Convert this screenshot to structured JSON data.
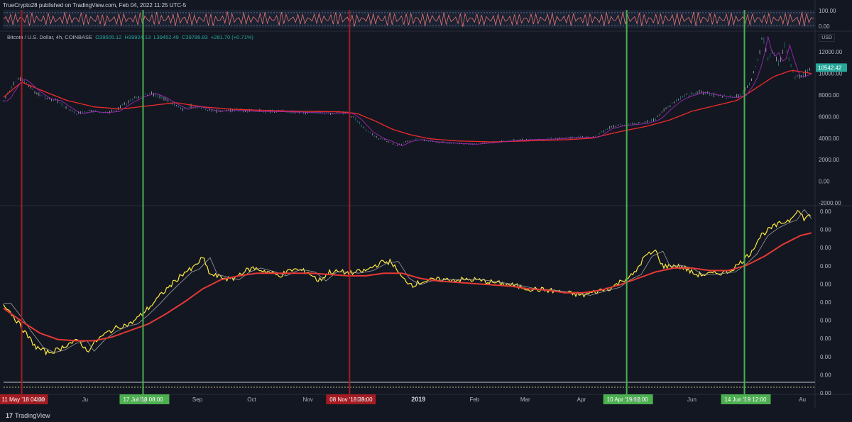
{
  "header": {
    "publisher": "TrueCrypto28",
    "text": "published on TradingView.com, Feb 04, 2022 11:25 UTC-5"
  },
  "legend": {
    "symbol": "Bitcoin / U.S. Dollar, 4h, COINBASE",
    "open": "O39505.12",
    "high": "H39924.13",
    "low": "L39452.49",
    "close": "C39786.83",
    "change": "+281.70 (+0.71%)"
  },
  "currency": "USD",
  "brand": {
    "logo": "17",
    "name": "TradingView"
  },
  "chart_data": {
    "type": "line",
    "colors": {
      "background": "#131722",
      "candles": "#26a69a",
      "ma_red": "#ef2b2b",
      "ma_purple": "#9c27b0",
      "osc_yellow": "#ffeb3b",
      "osc_red": "#e53935",
      "green_marker": "#4caf50",
      "red_marker": "#a31c22",
      "price_badge": "#26a69a"
    },
    "x_axis": {
      "ticks": [
        {
          "label": "Jun",
          "d": 20
        },
        {
          "label": "Ju",
          "d": 45
        },
        {
          "label": "Aug",
          "d": 76
        },
        {
          "label": "Sep",
          "d": 107
        },
        {
          "label": "Oct",
          "d": 137
        },
        {
          "label": "Nov",
          "d": 168
        },
        {
          "label": "Dec",
          "d": 198
        },
        {
          "label": "2019",
          "d": 229
        },
        {
          "label": "Feb",
          "d": 260
        },
        {
          "label": "Mar",
          "d": 288
        },
        {
          "label": "Apr",
          "d": 319
        },
        {
          "label": "May",
          "d": 349
        },
        {
          "label": "Jun",
          "d": 380
        },
        {
          "label": "Jul",
          "d": 410
        },
        {
          "label": "Au",
          "d": 441
        }
      ]
    },
    "markers": [
      {
        "label": "11 May '18   04:00",
        "d": 10,
        "color": "red"
      },
      {
        "label": "17 Jul '18   08:00",
        "d": 77,
        "color": "green"
      },
      {
        "label": "08 Nov '18   23:00",
        "d": 191,
        "color": "red"
      },
      {
        "label": "10 Apr '19   12:00",
        "d": 344,
        "color": "green"
      },
      {
        "label": "14 Jun '19   12:00",
        "d": 409,
        "color": "green"
      }
    ],
    "top_panel": {
      "ticks": [
        "100.00",
        "0.00"
      ],
      "ylim": [
        0,
        100
      ]
    },
    "price_panel": {
      "ticks": [
        "12000.00",
        "10000.00",
        "8000.00",
        "6000.00",
        "4000.00",
        "2000.00",
        "0.00",
        "-2000.00"
      ],
      "ylim": [
        -2000,
        13000
      ],
      "last_price": "10542.42",
      "price": [
        {
          "d": 0,
          "v": 7500
        },
        {
          "d": 4,
          "v": 8600
        },
        {
          "d": 8,
          "v": 9600
        },
        {
          "d": 11,
          "v": 9300
        },
        {
          "d": 17,
          "v": 8400
        },
        {
          "d": 23,
          "v": 7700
        },
        {
          "d": 29,
          "v": 7500
        },
        {
          "d": 35,
          "v": 6800
        },
        {
          "d": 40,
          "v": 6300
        },
        {
          "d": 47,
          "v": 6500
        },
        {
          "d": 54,
          "v": 6400
        },
        {
          "d": 61,
          "v": 6500
        },
        {
          "d": 68,
          "v": 7300
        },
        {
          "d": 75,
          "v": 7900
        },
        {
          "d": 81,
          "v": 8200
        },
        {
          "d": 87,
          "v": 7800
        },
        {
          "d": 93,
          "v": 7200
        },
        {
          "d": 99,
          "v": 6700
        },
        {
          "d": 104,
          "v": 7000
        },
        {
          "d": 110,
          "v": 6800
        },
        {
          "d": 116,
          "v": 6500
        },
        {
          "d": 123,
          "v": 6600
        },
        {
          "d": 130,
          "v": 6600
        },
        {
          "d": 137,
          "v": 6500
        },
        {
          "d": 148,
          "v": 6500
        },
        {
          "d": 160,
          "v": 6450
        },
        {
          "d": 170,
          "v": 6400
        },
        {
          "d": 180,
          "v": 6350
        },
        {
          "d": 190,
          "v": 6350
        },
        {
          "d": 195,
          "v": 5700
        },
        {
          "d": 201,
          "v": 4600
        },
        {
          "d": 207,
          "v": 4000
        },
        {
          "d": 212,
          "v": 3700
        },
        {
          "d": 217,
          "v": 3300
        },
        {
          "d": 222,
          "v": 3700
        },
        {
          "d": 228,
          "v": 3900
        },
        {
          "d": 238,
          "v": 3650
        },
        {
          "d": 248,
          "v": 3550
        },
        {
          "d": 258,
          "v": 3450
        },
        {
          "d": 268,
          "v": 3600
        },
        {
          "d": 280,
          "v": 3800
        },
        {
          "d": 292,
          "v": 3900
        },
        {
          "d": 304,
          "v": 3950
        },
        {
          "d": 316,
          "v": 4100
        },
        {
          "d": 326,
          "v": 4100
        },
        {
          "d": 333,
          "v": 4900
        },
        {
          "d": 340,
          "v": 5200
        },
        {
          "d": 347,
          "v": 5300
        },
        {
          "d": 353,
          "v": 5400
        },
        {
          "d": 360,
          "v": 5800
        },
        {
          "d": 366,
          "v": 6800
        },
        {
          "d": 372,
          "v": 7600
        },
        {
          "d": 378,
          "v": 8000
        },
        {
          "d": 384,
          "v": 8300
        },
        {
          "d": 390,
          "v": 8100
        },
        {
          "d": 396,
          "v": 7900
        },
        {
          "d": 402,
          "v": 7800
        },
        {
          "d": 407,
          "v": 8000
        },
        {
          "d": 412,
          "v": 9200
        },
        {
          "d": 416,
          "v": 11000
        },
        {
          "d": 419,
          "v": 13500
        },
        {
          "d": 422,
          "v": 11500
        },
        {
          "d": 425,
          "v": 12000
        },
        {
          "d": 428,
          "v": 10800
        },
        {
          "d": 431,
          "v": 12700
        },
        {
          "d": 434,
          "v": 11000
        },
        {
          "d": 437,
          "v": 9700
        },
        {
          "d": 440,
          "v": 9800
        },
        {
          "d": 443,
          "v": 10000
        },
        {
          "d": 446,
          "v": 10500
        }
      ],
      "ma_red": [
        {
          "d": 0,
          "v": 7800
        },
        {
          "d": 10,
          "v": 9200
        },
        {
          "d": 20,
          "v": 8500
        },
        {
          "d": 35,
          "v": 7500
        },
        {
          "d": 50,
          "v": 6900
        },
        {
          "d": 65,
          "v": 6700
        },
        {
          "d": 80,
          "v": 7000
        },
        {
          "d": 95,
          "v": 7300
        },
        {
          "d": 110,
          "v": 6900
        },
        {
          "d": 125,
          "v": 6700
        },
        {
          "d": 140,
          "v": 6600
        },
        {
          "d": 160,
          "v": 6500
        },
        {
          "d": 185,
          "v": 6450
        },
        {
          "d": 195,
          "v": 6300
        },
        {
          "d": 205,
          "v": 5600
        },
        {
          "d": 215,
          "v": 4800
        },
        {
          "d": 225,
          "v": 4300
        },
        {
          "d": 235,
          "v": 3950
        },
        {
          "d": 250,
          "v": 3750
        },
        {
          "d": 270,
          "v": 3650
        },
        {
          "d": 290,
          "v": 3750
        },
        {
          "d": 310,
          "v": 3850
        },
        {
          "d": 325,
          "v": 4000
        },
        {
          "d": 340,
          "v": 4600
        },
        {
          "d": 355,
          "v": 5100
        },
        {
          "d": 368,
          "v": 5700
        },
        {
          "d": 380,
          "v": 6500
        },
        {
          "d": 395,
          "v": 7100
        },
        {
          "d": 405,
          "v": 7500
        },
        {
          "d": 415,
          "v": 8600
        },
        {
          "d": 425,
          "v": 9700
        },
        {
          "d": 435,
          "v": 10300
        },
        {
          "d": 446,
          "v": 10000
        }
      ]
    },
    "osc_panel": {
      "ticks": [
        "0.00",
        "0.00",
        "0.00",
        "0.00",
        "0.00",
        "0.00",
        "0.00",
        "0.00",
        "0.00",
        "0.00",
        "0.00"
      ],
      "ylim": [
        0,
        100
      ],
      "yellow": [
        {
          "d": 0,
          "v": 56
        },
        {
          "d": 6,
          "v": 45
        },
        {
          "d": 12,
          "v": 33
        },
        {
          "d": 18,
          "v": 22
        },
        {
          "d": 24,
          "v": 18
        },
        {
          "d": 30,
          "v": 20
        },
        {
          "d": 36,
          "v": 25
        },
        {
          "d": 42,
          "v": 27
        },
        {
          "d": 46,
          "v": 19
        },
        {
          "d": 52,
          "v": 28
        },
        {
          "d": 58,
          "v": 34
        },
        {
          "d": 64,
          "v": 38
        },
        {
          "d": 70,
          "v": 40
        },
        {
          "d": 76,
          "v": 47
        },
        {
          "d": 82,
          "v": 55
        },
        {
          "d": 88,
          "v": 64
        },
        {
          "d": 94,
          "v": 72
        },
        {
          "d": 100,
          "v": 80
        },
        {
          "d": 104,
          "v": 82
        },
        {
          "d": 110,
          "v": 91
        },
        {
          "d": 114,
          "v": 78
        },
        {
          "d": 120,
          "v": 76
        },
        {
          "d": 126,
          "v": 74
        },
        {
          "d": 132,
          "v": 80
        },
        {
          "d": 138,
          "v": 83
        },
        {
          "d": 146,
          "v": 80
        },
        {
          "d": 152,
          "v": 77
        },
        {
          "d": 160,
          "v": 82
        },
        {
          "d": 168,
          "v": 80
        },
        {
          "d": 174,
          "v": 73
        },
        {
          "d": 180,
          "v": 80
        },
        {
          "d": 186,
          "v": 80
        },
        {
          "d": 192,
          "v": 79
        },
        {
          "d": 200,
          "v": 81
        },
        {
          "d": 208,
          "v": 87
        },
        {
          "d": 214,
          "v": 88
        },
        {
          "d": 220,
          "v": 75
        },
        {
          "d": 226,
          "v": 70
        },
        {
          "d": 232,
          "v": 73
        },
        {
          "d": 240,
          "v": 74
        },
        {
          "d": 250,
          "v": 74
        },
        {
          "d": 260,
          "v": 74
        },
        {
          "d": 270,
          "v": 72
        },
        {
          "d": 280,
          "v": 70
        },
        {
          "d": 290,
          "v": 67
        },
        {
          "d": 300,
          "v": 66
        },
        {
          "d": 310,
          "v": 64
        },
        {
          "d": 320,
          "v": 62
        },
        {
          "d": 330,
          "v": 66
        },
        {
          "d": 336,
          "v": 68
        },
        {
          "d": 342,
          "v": 74
        },
        {
          "d": 348,
          "v": 78
        },
        {
          "d": 354,
          "v": 92
        },
        {
          "d": 360,
          "v": 96
        },
        {
          "d": 364,
          "v": 84
        },
        {
          "d": 370,
          "v": 85
        },
        {
          "d": 376,
          "v": 83
        },
        {
          "d": 382,
          "v": 78
        },
        {
          "d": 388,
          "v": 78
        },
        {
          "d": 394,
          "v": 79
        },
        {
          "d": 400,
          "v": 80
        },
        {
          "d": 406,
          "v": 86
        },
        {
          "d": 412,
          "v": 94
        },
        {
          "d": 418,
          "v": 108
        },
        {
          "d": 424,
          "v": 114
        },
        {
          "d": 430,
          "v": 118
        },
        {
          "d": 434,
          "v": 120
        },
        {
          "d": 438,
          "v": 128
        },
        {
          "d": 442,
          "v": 121
        },
        {
          "d": 446,
          "v": 124
        }
      ],
      "red": [
        {
          "d": 0,
          "v": 52
        },
        {
          "d": 10,
          "v": 42
        },
        {
          "d": 20,
          "v": 33
        },
        {
          "d": 30,
          "v": 28
        },
        {
          "d": 40,
          "v": 27
        },
        {
          "d": 50,
          "v": 27
        },
        {
          "d": 60,
          "v": 30
        },
        {
          "d": 70,
          "v": 35
        },
        {
          "d": 80,
          "v": 40
        },
        {
          "d": 90,
          "v": 48
        },
        {
          "d": 100,
          "v": 57
        },
        {
          "d": 110,
          "v": 67
        },
        {
          "d": 120,
          "v": 74
        },
        {
          "d": 130,
          "v": 77
        },
        {
          "d": 140,
          "v": 79
        },
        {
          "d": 150,
          "v": 79
        },
        {
          "d": 160,
          "v": 79
        },
        {
          "d": 170,
          "v": 79
        },
        {
          "d": 180,
          "v": 78
        },
        {
          "d": 190,
          "v": 77
        },
        {
          "d": 200,
          "v": 77
        },
        {
          "d": 210,
          "v": 79
        },
        {
          "d": 220,
          "v": 79
        },
        {
          "d": 230,
          "v": 75
        },
        {
          "d": 240,
          "v": 73
        },
        {
          "d": 250,
          "v": 72
        },
        {
          "d": 260,
          "v": 71
        },
        {
          "d": 270,
          "v": 70
        },
        {
          "d": 280,
          "v": 69
        },
        {
          "d": 290,
          "v": 67
        },
        {
          "d": 300,
          "v": 66
        },
        {
          "d": 310,
          "v": 64
        },
        {
          "d": 320,
          "v": 64
        },
        {
          "d": 330,
          "v": 66
        },
        {
          "d": 340,
          "v": 70
        },
        {
          "d": 350,
          "v": 75
        },
        {
          "d": 360,
          "v": 80
        },
        {
          "d": 370,
          "v": 83
        },
        {
          "d": 380,
          "v": 83
        },
        {
          "d": 390,
          "v": 81
        },
        {
          "d": 400,
          "v": 81
        },
        {
          "d": 410,
          "v": 85
        },
        {
          "d": 420,
          "v": 92
        },
        {
          "d": 430,
          "v": 101
        },
        {
          "d": 440,
          "v": 108
        },
        {
          "d": 446,
          "v": 110
        }
      ]
    }
  }
}
